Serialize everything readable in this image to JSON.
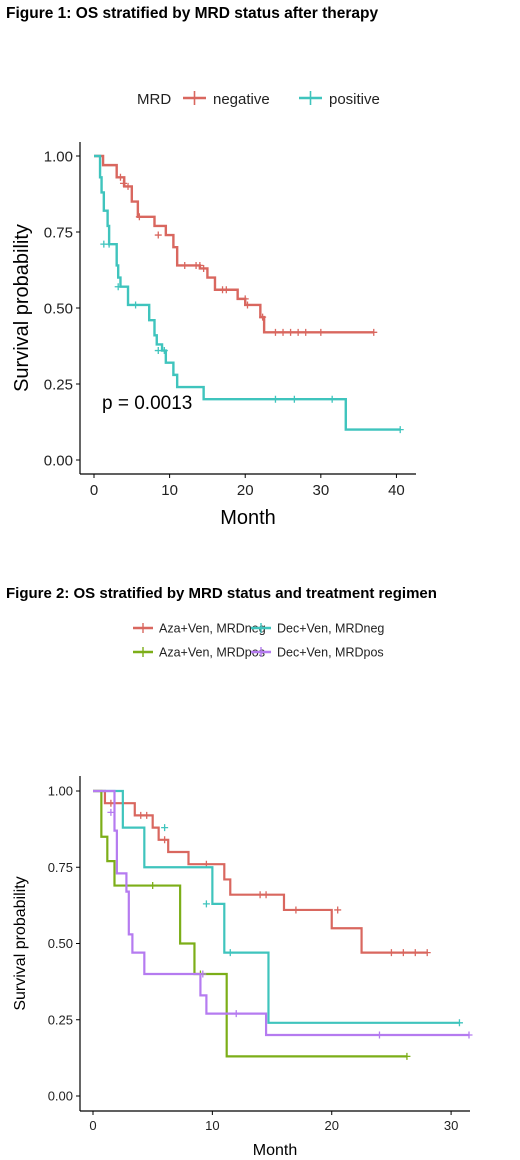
{
  "chart_data": [
    {
      "type": "line",
      "title": "Figure 1: OS stratified by MRD status after therapy",
      "xlabel": "Month",
      "ylabel": "Survival probability",
      "xlim": [
        0,
        41
      ],
      "ylim": [
        0,
        1
      ],
      "xticks": [
        "0",
        "10",
        "20",
        "30",
        "40"
      ],
      "yticks": [
        "0.00",
        "0.25",
        "0.50",
        "0.75",
        "1.00"
      ],
      "legend_title": "MRD",
      "legend_position": "top",
      "annotation": "p = 0.0013",
      "series": [
        {
          "name": "negative",
          "color": "#D9675F",
          "steps": [
            [
              0,
              1.0
            ],
            [
              1.2,
              0.97
            ],
            [
              3.0,
              0.93
            ],
            [
              4.0,
              0.9
            ],
            [
              5.0,
              0.85
            ],
            [
              5.8,
              0.8
            ],
            [
              8.0,
              0.77
            ],
            [
              9.5,
              0.74
            ],
            [
              10.5,
              0.7
            ],
            [
              11.0,
              0.64
            ],
            [
              14.0,
              0.63
            ],
            [
              15.0,
              0.6
            ],
            [
              16.0,
              0.56
            ],
            [
              19.0,
              0.53
            ],
            [
              20.0,
              0.51
            ],
            [
              22.0,
              0.47
            ],
            [
              22.5,
              0.42
            ],
            [
              37.0,
              0.42
            ]
          ],
          "censors": [
            [
              3.5,
              0.93
            ],
            [
              3.9,
              0.91
            ],
            [
              4.5,
              0.9
            ],
            [
              6.0,
              0.8
            ],
            [
              8.5,
              0.74
            ],
            [
              12.0,
              0.64
            ],
            [
              13.5,
              0.64
            ],
            [
              14.0,
              0.64
            ],
            [
              14.5,
              0.63
            ],
            [
              17.0,
              0.56
            ],
            [
              17.5,
              0.56
            ],
            [
              20.0,
              0.53
            ],
            [
              20.3,
              0.51
            ],
            [
              22.3,
              0.47
            ],
            [
              24.0,
              0.42
            ],
            [
              25.0,
              0.42
            ],
            [
              26.0,
              0.42
            ],
            [
              27.0,
              0.42
            ],
            [
              28.0,
              0.42
            ],
            [
              30.0,
              0.42
            ],
            [
              37.0,
              0.42
            ]
          ]
        },
        {
          "name": "positive",
          "color": "#3FC4BD",
          "steps": [
            [
              0,
              1.0
            ],
            [
              0.8,
              0.93
            ],
            [
              1.0,
              0.88
            ],
            [
              1.3,
              0.82
            ],
            [
              1.8,
              0.77
            ],
            [
              2.0,
              0.71
            ],
            [
              3.0,
              0.64
            ],
            [
              3.2,
              0.6
            ],
            [
              3.5,
              0.57
            ],
            [
              4.5,
              0.51
            ],
            [
              6.5,
              0.51
            ],
            [
              7.3,
              0.46
            ],
            [
              8.0,
              0.41
            ],
            [
              8.3,
              0.38
            ],
            [
              9.0,
              0.36
            ],
            [
              9.5,
              0.32
            ],
            [
              10.5,
              0.28
            ],
            [
              11.0,
              0.24
            ],
            [
              14.5,
              0.2
            ],
            [
              33.0,
              0.2
            ],
            [
              33.3,
              0.1
            ],
            [
              40.5,
              0.1
            ]
          ],
          "censors": [
            [
              1.3,
              0.71
            ],
            [
              2.0,
              0.71
            ],
            [
              3.2,
              0.57
            ],
            [
              5.5,
              0.51
            ],
            [
              8.5,
              0.36
            ],
            [
              9.3,
              0.36
            ],
            [
              24.0,
              0.2
            ],
            [
              26.5,
              0.2
            ],
            [
              31.5,
              0.2
            ],
            [
              40.5,
              0.1
            ]
          ]
        }
      ]
    },
    {
      "type": "line",
      "title": "Figure 2: OS stratified by MRD status and treatment regimen",
      "xlabel": "Month",
      "ylabel": "Survival probability",
      "xlim": [
        0,
        31.5
      ],
      "ylim": [
        0,
        1
      ],
      "xticks": [
        "0",
        "10",
        "20",
        "30"
      ],
      "yticks": [
        "0.00",
        "0.25",
        "0.50",
        "0.75",
        "1.00"
      ],
      "legend_position": "top",
      "series": [
        {
          "name": "Aza+Ven, MRDneg",
          "color": "#D9675F",
          "steps": [
            [
              0,
              1.0
            ],
            [
              1.0,
              0.96
            ],
            [
              3.5,
              0.92
            ],
            [
              5.0,
              0.88
            ],
            [
              5.5,
              0.84
            ],
            [
              6.3,
              0.8
            ],
            [
              8.0,
              0.76
            ],
            [
              11.0,
              0.71
            ],
            [
              11.5,
              0.66
            ],
            [
              16.0,
              0.61
            ],
            [
              20.0,
              0.55
            ],
            [
              22.5,
              0.47
            ],
            [
              28.0,
              0.47
            ]
          ],
          "censors": [
            [
              1.5,
              0.96
            ],
            [
              2.5,
              0.96
            ],
            [
              4.0,
              0.92
            ],
            [
              4.5,
              0.92
            ],
            [
              6.0,
              0.84
            ],
            [
              9.5,
              0.76
            ],
            [
              14.0,
              0.66
            ],
            [
              14.5,
              0.66
            ],
            [
              17.0,
              0.61
            ],
            [
              20.5,
              0.61
            ],
            [
              25.0,
              0.47
            ],
            [
              26.0,
              0.47
            ],
            [
              27.0,
              0.47
            ],
            [
              28.0,
              0.47
            ]
          ]
        },
        {
          "name": "Dec+Ven, MRDneg",
          "color": "#3FC4BD",
          "steps": [
            [
              0,
              1.0
            ],
            [
              2.5,
              0.88
            ],
            [
              4.3,
              0.75
            ],
            [
              7.5,
              0.75
            ],
            [
              10.0,
              0.63
            ],
            [
              11.0,
              0.47
            ],
            [
              14.5,
              0.47
            ],
            [
              14.7,
              0.24
            ],
            [
              30.7,
              0.24
            ]
          ],
          "censors": [
            [
              6.0,
              0.88
            ],
            [
              9.5,
              0.63
            ],
            [
              11.5,
              0.47
            ],
            [
              30.7,
              0.24
            ]
          ]
        },
        {
          "name": "Aza+Ven, MRDpos",
          "color": "#7CAE18",
          "steps": [
            [
              0,
              1.0
            ],
            [
              0.7,
              0.85
            ],
            [
              1.2,
              0.77
            ],
            [
              1.8,
              0.69
            ],
            [
              7.0,
              0.69
            ],
            [
              7.3,
              0.5
            ],
            [
              8.5,
              0.4
            ],
            [
              10.5,
              0.4
            ],
            [
              11.2,
              0.13
            ],
            [
              26.3,
              0.13
            ]
          ],
          "censors": [
            [
              5.0,
              0.69
            ],
            [
              9.0,
              0.4
            ],
            [
              26.3,
              0.13
            ]
          ]
        },
        {
          "name": "Dec+Ven, MRDpos",
          "color": "#B57BF0",
          "steps": [
            [
              0,
              1.0
            ],
            [
              1.8,
              0.87
            ],
            [
              2.0,
              0.73
            ],
            [
              2.8,
              0.67
            ],
            [
              3.0,
              0.53
            ],
            [
              3.3,
              0.47
            ],
            [
              4.3,
              0.4
            ],
            [
              9.0,
              0.33
            ],
            [
              9.5,
              0.27
            ],
            [
              14.5,
              0.2
            ],
            [
              31.5,
              0.2
            ]
          ],
          "censors": [
            [
              1.5,
              0.93
            ],
            [
              9.2,
              0.4
            ],
            [
              12.0,
              0.27
            ],
            [
              24.0,
              0.2
            ],
            [
              31.5,
              0.2
            ]
          ]
        }
      ]
    }
  ]
}
